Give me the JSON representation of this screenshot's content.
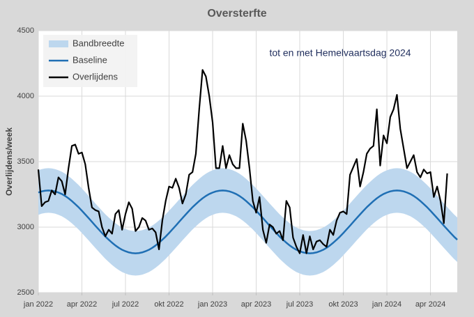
{
  "chart_data": {
    "type": "line",
    "title": "Oversterfte",
    "ylabel": "Overlijdens/week",
    "annotation": "tot en met Hemelvaartsdag 2024",
    "categories": [
      "jan 2022",
      null,
      null,
      null,
      null,
      null,
      null,
      null,
      null,
      null,
      null,
      null,
      null,
      "apr 2022",
      null,
      null,
      null,
      null,
      null,
      null,
      null,
      null,
      null,
      null,
      null,
      null,
      "jul 2022",
      null,
      null,
      null,
      null,
      null,
      null,
      null,
      null,
      null,
      null,
      null,
      null,
      "okt 2022",
      null,
      null,
      null,
      null,
      null,
      null,
      null,
      null,
      null,
      null,
      null,
      null,
      "jan 2023",
      null,
      null,
      null,
      null,
      null,
      null,
      null,
      null,
      null,
      null,
      null,
      null,
      "apr 2023",
      null,
      null,
      null,
      null,
      null,
      null,
      null,
      null,
      null,
      null,
      null,
      null,
      "jul 2023",
      null,
      null,
      null,
      null,
      null,
      null,
      null,
      null,
      null,
      null,
      null,
      null,
      "okt 2023",
      null,
      null,
      null,
      null,
      null,
      null,
      null,
      null,
      null,
      null,
      null,
      null,
      "jan 2024",
      null,
      null,
      null,
      null,
      null,
      null,
      null,
      null,
      null,
      null,
      null,
      null,
      "apr 2024",
      null,
      null,
      null,
      null,
      null,
      null,
      null,
      null
    ],
    "series": [
      {
        "name": "Bandbreedte",
        "type": "band",
        "color": "#bdd7ee",
        "upper": [
          3434,
          3443,
          3448,
          3450,
          3448,
          3443,
          3434,
          3423,
          3408,
          3390,
          3369,
          3346,
          3322,
          3295,
          3267,
          3239,
          3210,
          3181,
          3153,
          3125,
          3098,
          3074,
          3051,
          3030,
          3012,
          2997,
          2986,
          2977,
          2972,
          2970,
          2972,
          2977,
          2986,
          2997,
          3012,
          3030,
          3051,
          3074,
          3098,
          3125,
          3153,
          3181,
          3210,
          3239,
          3267,
          3295,
          3322,
          3346,
          3369,
          3390,
          3408,
          3423,
          3434,
          3443,
          3448,
          3450,
          3448,
          3443,
          3434,
          3423,
          3408,
          3390,
          3369,
          3346,
          3322,
          3295,
          3267,
          3239,
          3210,
          3181,
          3153,
          3125,
          3098,
          3074,
          3051,
          3030,
          3012,
          2997,
          2986,
          2977,
          2972,
          2970,
          2972,
          2977,
          2986,
          2997,
          3012,
          3030,
          3051,
          3074,
          3098,
          3125,
          3153,
          3181,
          3210,
          3239,
          3267,
          3295,
          3322,
          3346,
          3369,
          3390,
          3408,
          3423,
          3434,
          3443,
          3448,
          3450,
          3448,
          3443,
          3434,
          3423,
          3408,
          3390,
          3369,
          3346,
          3322,
          3295,
          3267,
          3239,
          3210,
          3181,
          3153,
          3125,
          3098,
          3074
        ],
        "lower": [
          3094,
          3103,
          3108,
          3110,
          3108,
          3103,
          3094,
          3083,
          3068,
          3050,
          3029,
          3006,
          2982,
          2955,
          2927,
          2899,
          2870,
          2841,
          2813,
          2785,
          2758,
          2734,
          2711,
          2690,
          2672,
          2657,
          2646,
          2637,
          2632,
          2630,
          2632,
          2637,
          2646,
          2657,
          2672,
          2690,
          2711,
          2734,
          2758,
          2785,
          2813,
          2841,
          2870,
          2899,
          2927,
          2955,
          2982,
          3006,
          3029,
          3050,
          3068,
          3083,
          3094,
          3103,
          3108,
          3110,
          3108,
          3103,
          3094,
          3083,
          3068,
          3050,
          3029,
          3006,
          2982,
          2955,
          2927,
          2899,
          2870,
          2841,
          2813,
          2785,
          2758,
          2734,
          2711,
          2690,
          2672,
          2657,
          2646,
          2637,
          2632,
          2630,
          2632,
          2637,
          2646,
          2657,
          2672,
          2690,
          2711,
          2734,
          2758,
          2785,
          2813,
          2841,
          2870,
          2899,
          2927,
          2955,
          2982,
          3006,
          3029,
          3050,
          3068,
          3083,
          3094,
          3103,
          3108,
          3110,
          3108,
          3103,
          3094,
          3083,
          3068,
          3050,
          3029,
          3006,
          2982,
          2955,
          2927,
          2899,
          2870,
          2841,
          2813,
          2785,
          2758,
          2734
        ]
      },
      {
        "name": "Baseline",
        "type": "line",
        "color": "#1f6fb4",
        "values": [
          3264,
          3273,
          3278,
          3280,
          3278,
          3273,
          3264,
          3253,
          3238,
          3220,
          3199,
          3176,
          3152,
          3125,
          3097,
          3069,
          3040,
          3011,
          2983,
          2955,
          2928,
          2904,
          2881,
          2860,
          2842,
          2827,
          2816,
          2807,
          2802,
          2800,
          2802,
          2807,
          2816,
          2827,
          2842,
          2860,
          2881,
          2904,
          2928,
          2955,
          2983,
          3011,
          3040,
          3069,
          3097,
          3125,
          3152,
          3176,
          3199,
          3220,
          3238,
          3253,
          3264,
          3273,
          3278,
          3280,
          3278,
          3273,
          3264,
          3253,
          3238,
          3220,
          3199,
          3176,
          3152,
          3125,
          3097,
          3069,
          3040,
          3011,
          2983,
          2955,
          2928,
          2904,
          2881,
          2860,
          2842,
          2827,
          2816,
          2807,
          2802,
          2800,
          2802,
          2807,
          2816,
          2827,
          2842,
          2860,
          2881,
          2904,
          2928,
          2955,
          2983,
          3011,
          3040,
          3069,
          3097,
          3125,
          3152,
          3176,
          3199,
          3220,
          3238,
          3253,
          3264,
          3273,
          3278,
          3280,
          3278,
          3273,
          3264,
          3253,
          3238,
          3220,
          3199,
          3176,
          3152,
          3125,
          3097,
          3069,
          3040,
          3011,
          2983,
          2955,
          2928,
          2904
        ]
      },
      {
        "name": "Overlijdens",
        "type": "line",
        "color": "#000000",
        "values": [
          3440,
          3160,
          3190,
          3200,
          3280,
          3250,
          3380,
          3350,
          3250,
          3450,
          3620,
          3630,
          3560,
          3570,
          3480,
          3300,
          3150,
          3130,
          3120,
          3000,
          2930,
          2980,
          2950,
          3100,
          3130,
          2980,
          3100,
          3190,
          3140,
          2970,
          3000,
          3070,
          3050,
          2980,
          2990,
          2960,
          2830,
          3050,
          3200,
          3310,
          3300,
          3370,
          3300,
          3180,
          3250,
          3400,
          3420,
          3560,
          3900,
          4200,
          4150,
          4000,
          3800,
          3450,
          3450,
          3620,
          3450,
          3550,
          3480,
          3450,
          3450,
          3790,
          3660,
          3450,
          3200,
          3110,
          3230,
          2980,
          2880,
          3020,
          3000,
          2950,
          2970,
          2900,
          3200,
          3150,
          2920,
          2850,
          2800,
          2940,
          2800,
          2930,
          2830,
          2890,
          2900,
          2870,
          2850,
          2980,
          2940,
          3050,
          3110,
          3120,
          3100,
          3400,
          3460,
          3520,
          3310,
          3420,
          3560,
          3600,
          3620,
          3900,
          3470,
          3700,
          3640,
          3840,
          3900,
          4010,
          3750,
          3600,
          3450,
          3500,
          3550,
          3420,
          3380,
          3440,
          3410,
          3420,
          3230,
          3310,
          3200,
          3030,
          3410,
          null,
          null,
          null
        ]
      }
    ],
    "ylim": [
      2500,
      4500
    ],
    "yticks": [
      2500,
      3000,
      3500,
      4000,
      4500
    ],
    "grid": true,
    "legend": "upper left"
  }
}
